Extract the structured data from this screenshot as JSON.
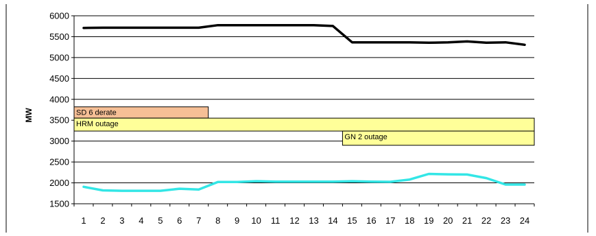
{
  "chart_data": {
    "type": "line",
    "title": "",
    "xlabel": "",
    "ylabel": "MW",
    "ylim": [
      1500,
      6000
    ],
    "yticks": [
      1500,
      2000,
      2500,
      3000,
      3500,
      4000,
      4500,
      5000,
      5500,
      6000
    ],
    "x": [
      1,
      2,
      3,
      4,
      5,
      6,
      7,
      8,
      9,
      10,
      11,
      12,
      13,
      14,
      15,
      16,
      17,
      18,
      19,
      20,
      21,
      22,
      23,
      24
    ],
    "grid": "horizontal",
    "legend": "none",
    "series": [
      {
        "color": "#000000",
        "values": [
          5710,
          5715,
          5715,
          5715,
          5715,
          5715,
          5715,
          5775,
          5775,
          5775,
          5775,
          5775,
          5775,
          5755,
          5365,
          5365,
          5365,
          5365,
          5355,
          5365,
          5385,
          5355,
          5365,
          5305
        ]
      },
      {
        "color": "#33e6e6",
        "values": [
          1905,
          1820,
          1810,
          1810,
          1810,
          1860,
          1840,
          2020,
          2020,
          2040,
          2030,
          2030,
          2030,
          2030,
          2040,
          2030,
          2025,
          2080,
          2215,
          2205,
          2200,
          2115,
          1960,
          1960
        ]
      }
    ],
    "annotations": [
      {
        "label": "SD 6 derate",
        "x_start": 0.5,
        "x_end": 7.5,
        "y_top": 3820,
        "y_bottom": 3550,
        "color": "#f6bf96"
      },
      {
        "label": "HRM outage",
        "x_start": 0.5,
        "x_end": 24.5,
        "y_top": 3550,
        "y_bottom": 3240,
        "color": "#ffff99"
      },
      {
        "label": "GN 2 outage",
        "x_start": 14.5,
        "x_end": 24.5,
        "y_top": 3240,
        "y_bottom": 2900,
        "color": "#ffff99"
      }
    ]
  }
}
